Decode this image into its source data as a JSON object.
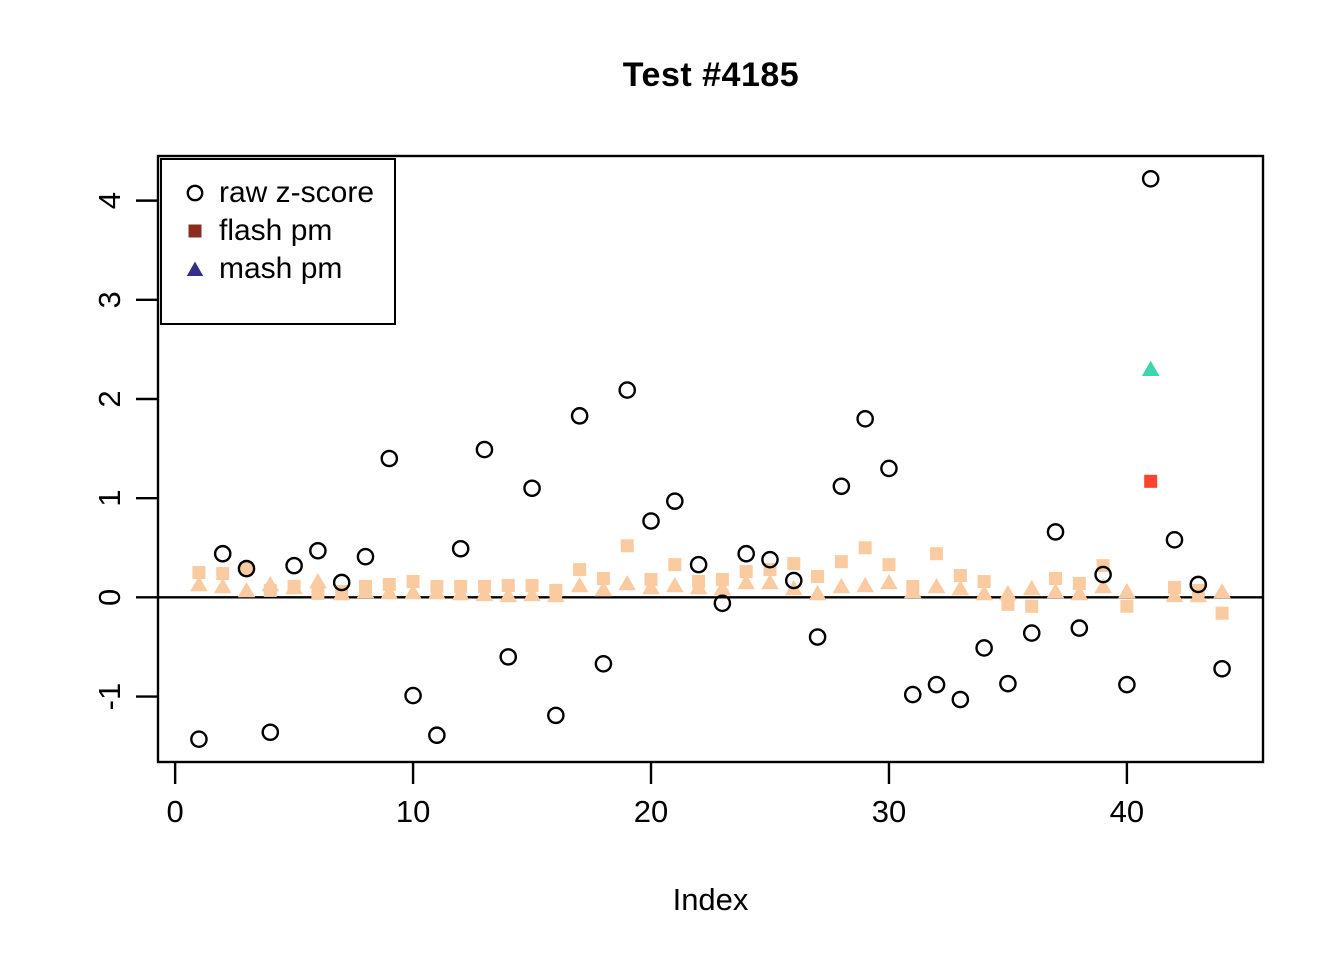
{
  "window": {
    "background": "#ffffff"
  },
  "chart_data": {
    "type": "scatter",
    "title": "Test #4185",
    "xlabel": "Index",
    "ylabel": "",
    "x_is_index": true,
    "n_points": 44,
    "xlim": [
      -0.72,
      45.72
    ],
    "ylim": [
      -1.66,
      4.45
    ],
    "x_ticks": [
      0,
      10,
      20,
      30,
      40
    ],
    "y_ticks": [
      -1,
      0,
      1,
      2,
      3,
      4
    ],
    "grid": false,
    "hline_y": 0,
    "series": [
      {
        "name": "raw z-score",
        "marker": "circle",
        "color": "#000000",
        "fill": "none",
        "values": [
          -1.43,
          0.44,
          0.29,
          -1.36,
          0.32,
          0.47,
          0.15,
          0.41,
          1.4,
          -0.99,
          -1.39,
          0.49,
          1.49,
          -0.6,
          1.1,
          -1.19,
          1.83,
          -0.67,
          2.09,
          0.77,
          0.97,
          0.33,
          -0.06,
          0.44,
          0.38,
          0.17,
          -0.4,
          1.12,
          1.8,
          1.3,
          -0.98,
          -0.88,
          -1.03,
          -0.51,
          -0.87,
          -0.36,
          0.66,
          -0.31,
          0.23,
          -0.88,
          4.22,
          0.58,
          0.13,
          -0.72
        ]
      },
      {
        "name": "flash pm",
        "marker": "square",
        "color": "#FACBA0",
        "highlight": {
          "index": 41,
          "color": "#F9452F"
        },
        "values": [
          0.25,
          0.24,
          0.29,
          0.07,
          0.11,
          0.04,
          0.06,
          0.11,
          0.13,
          0.16,
          0.11,
          0.11,
          0.11,
          0.12,
          0.12,
          0.07,
          0.28,
          0.19,
          0.52,
          0.18,
          0.33,
          0.16,
          0.18,
          0.26,
          0.28,
          0.34,
          0.21,
          0.36,
          0.5,
          0.33,
          0.11,
          0.44,
          0.22,
          0.16,
          -0.07,
          -0.09,
          0.19,
          0.14,
          0.32,
          -0.09,
          1.17,
          0.1,
          0.07,
          -0.16
        ]
      },
      {
        "name": "mash pm",
        "marker": "triangle",
        "color": "#FACBA0",
        "highlight": {
          "index": 41,
          "color": "#3BD6AC"
        },
        "values": [
          0.13,
          0.11,
          0.07,
          0.13,
          0.1,
          0.16,
          0.04,
          0.06,
          0.05,
          0.05,
          0.05,
          0.04,
          0.03,
          0.02,
          0.03,
          0.02,
          0.12,
          0.08,
          0.14,
          0.1,
          0.12,
          0.1,
          0.09,
          0.15,
          0.15,
          0.09,
          0.04,
          0.11,
          0.12,
          0.15,
          0.06,
          0.11,
          0.09,
          0.04,
          0.04,
          0.09,
          0.06,
          0.04,
          0.11,
          0.06,
          2.3,
          0.02,
          0.02,
          0.06
        ]
      }
    ],
    "legend": {
      "position": "topleft",
      "items": [
        {
          "label": "raw z-score",
          "marker": "circle",
          "color": "#000000"
        },
        {
          "label": "flash pm",
          "marker": "square",
          "color": "#8B2C21"
        },
        {
          "label": "mash pm",
          "marker": "triangle",
          "color": "#34308A"
        }
      ]
    },
    "axis_color": "#000000",
    "tick_label_color": "#000000"
  }
}
